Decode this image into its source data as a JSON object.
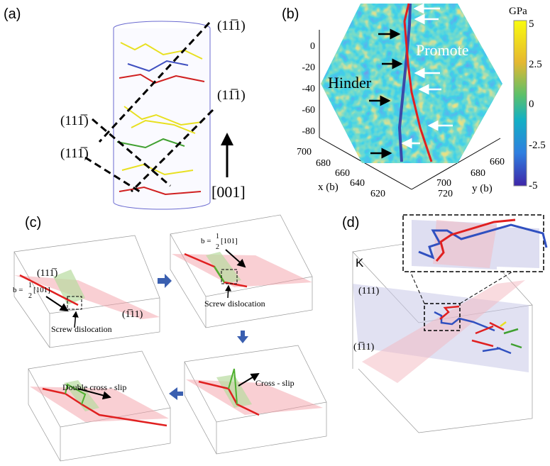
{
  "panels": {
    "a": {
      "label": "(a)",
      "planes": [
        "(11̅1)",
        "(11̅1)",
        "(111̅)",
        "(111̅)"
      ],
      "direction": "[001]"
    },
    "b": {
      "label": "(b)",
      "z_ticks": [
        "0",
        "-20",
        "-40",
        "-60",
        "-80"
      ],
      "x_ticks": [
        "700",
        "680",
        "660",
        "640",
        "620"
      ],
      "y_ticks": [
        "660",
        "680",
        "700",
        "720"
      ],
      "x_label": "x (b)",
      "y_label": "y (b)",
      "hinder": "Hinder",
      "promote": "Promote",
      "colorbar": {
        "unit": "GPa",
        "ticks": [
          "5",
          "2.5",
          "0",
          "-2.5",
          "-5"
        ],
        "range": [
          -5,
          5
        ]
      },
      "colors": {
        "blue_line": "#3b4aa8",
        "red_line": "#e02020"
      }
    },
    "c": {
      "label": "(c)",
      "plane_1": "(111̅)",
      "plane_2": "(1̅11)",
      "burgers_b": "b =",
      "burgers_frac": "1",
      "burgers_den": "2",
      "burgers_vec": "[101]",
      "screw_1": "Screw dislocation",
      "screw_2": "Screw dislocation",
      "cross_slip": "Cross - slip",
      "double_cross_slip": "Double cross - slip"
    },
    "d": {
      "label": "(d)",
      "corner": "K",
      "plane_1": "(111)",
      "plane_2": "(1̅11)"
    }
  }
}
